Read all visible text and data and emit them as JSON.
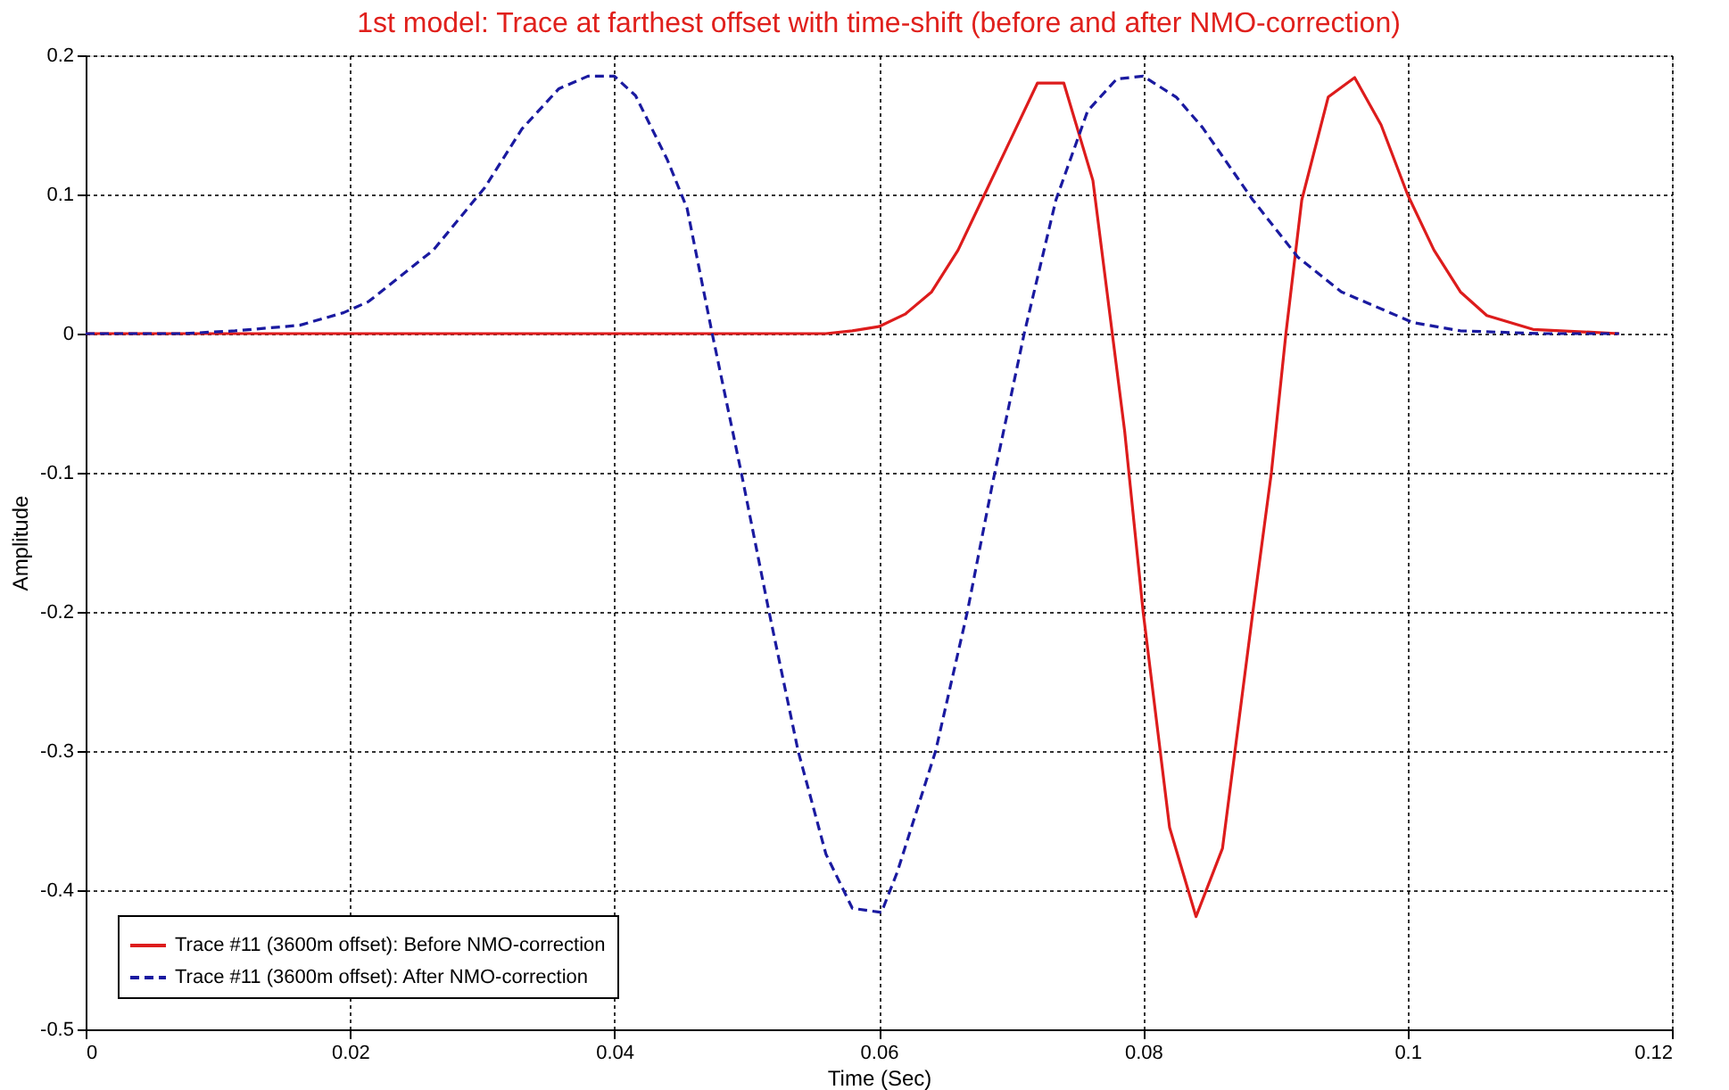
{
  "chart_data": {
    "type": "line",
    "title": "1st model: Trace at farthest offset with time-shift (before and after NMO-correction)",
    "xlabel": "Time (Sec)",
    "ylabel": "Amplitude",
    "xlim": [
      0,
      0.12
    ],
    "xticks": [
      0,
      0.02,
      0.04,
      0.06,
      0.08,
      0.1,
      0.12
    ],
    "ylim": [
      -0.5,
      0.2
    ],
    "yticks": [
      -0.5,
      -0.4,
      -0.3,
      -0.2,
      -0.1,
      0,
      0.1,
      0.2
    ],
    "grid": true,
    "legend": "bottom left",
    "marker": "none",
    "series": [
      {
        "name": "Trace #11 (3600m offset): Before NMO-correction",
        "color": "#dd1c1c",
        "line_style": "solid",
        "x": [
          0,
          0.056,
          0.058,
          0.06,
          0.062,
          0.064,
          0.066,
          0.068,
          0.07,
          0.072,
          0.074,
          0.0762,
          0.0786,
          0.08,
          0.082,
          0.084,
          0.086,
          0.0883,
          0.0897,
          0.0908,
          0.092,
          0.094,
          0.096,
          0.098,
          0.1,
          0.102,
          0.104,
          0.106,
          0.1095,
          0.116
        ],
        "values": [
          0,
          0,
          0.002,
          0.005,
          0.014,
          0.03,
          0.06,
          0.1,
          0.14,
          0.18,
          0.18,
          0.11,
          -0.07,
          -0.2,
          -0.355,
          -0.419,
          -0.37,
          -0.2,
          -0.1,
          0,
          0.096,
          0.17,
          0.184,
          0.15,
          0.1,
          0.06,
          0.03,
          0.013,
          0.003,
          0
        ]
      },
      {
        "name": "Trace #11 (3600m offset): After NMO-correction",
        "color": "#1a1aa0",
        "line_style": "dashed",
        "x": [
          0,
          0.0074,
          0.0113,
          0.0162,
          0.0195,
          0.0214,
          0.0263,
          0.0302,
          0.033,
          0.0358,
          0.038,
          0.04,
          0.0416,
          0.044,
          0.0455,
          0.0474,
          0.0496,
          0.0517,
          0.0539,
          0.056,
          0.058,
          0.0602,
          0.0614,
          0.0643,
          0.0667,
          0.0686,
          0.071,
          0.0734,
          0.0758,
          0.078,
          0.08,
          0.0825,
          0.0845,
          0.0883,
          0.0917,
          0.095,
          0.1004,
          0.104,
          0.11,
          0.116
        ],
        "values": [
          0,
          0,
          0.002,
          0.006,
          0.015,
          0.023,
          0.06,
          0.105,
          0.147,
          0.176,
          0.185,
          0.185,
          0.171,
          0.125,
          0.09,
          0,
          -0.1,
          -0.2,
          -0.3,
          -0.374,
          -0.413,
          -0.416,
          -0.387,
          -0.3,
          -0.2,
          -0.108,
          0,
          0.096,
          0.16,
          0.183,
          0.185,
          0.17,
          0.148,
          0.096,
          0.055,
          0.03,
          0.008,
          0.002,
          0,
          0
        ]
      }
    ]
  }
}
